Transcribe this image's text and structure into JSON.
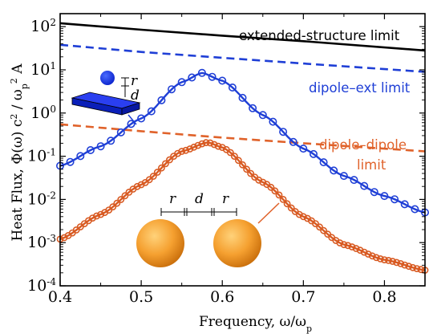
{
  "chart_data": {
    "type": "line",
    "title": "",
    "xlabel": "Frequency, ω/ω",
    "xlabel_sub": "p",
    "ylabel": "Heat Flux, Φ(ω) c / ω A",
    "ylabel_parts": [
      "Heat Flux, Φ(ω) c",
      "2",
      " / ω",
      "p",
      "2",
      " A"
    ],
    "xlim": [
      0.4,
      0.85
    ],
    "ylim": [
      0.0001,
      200
    ],
    "yscale": "log",
    "grid": false,
    "x_ticks": [
      0.4,
      0.5,
      0.6,
      0.7,
      0.8
    ],
    "x_tick_labels": [
      "0.4",
      "0.5",
      "0.6",
      "0.7",
      "0.8"
    ],
    "y_tick_labels": [
      {
        "base": "10",
        "exp": "-4",
        "value": 0.0001
      },
      {
        "base": "10",
        "exp": "-3",
        "value": 0.001
      },
      {
        "base": "10",
        "exp": "-2",
        "value": 0.01
      },
      {
        "base": "10",
        "exp": "-1",
        "value": 0.1
      },
      {
        "base": "10",
        "exp": "0",
        "value": 1
      },
      {
        "base": "10",
        "exp": "1",
        "value": 10
      },
      {
        "base": "10",
        "exp": "2",
        "value": 100
      }
    ],
    "series": [
      {
        "name": "extended-structure limit",
        "style": "solid",
        "color": "#000000",
        "x": [
          0.4,
          0.5,
          0.6,
          0.7,
          0.85
        ],
        "y": [
          120,
          85,
          62,
          46,
          28
        ]
      },
      {
        "name": "dipole–ext limit",
        "style": "dashed",
        "color": "#1f3fd6",
        "x": [
          0.4,
          0.5,
          0.6,
          0.7,
          0.85
        ],
        "y": [
          38,
          26,
          19,
          14,
          9
        ]
      },
      {
        "name": "dipole–dipole limit",
        "style": "dashed",
        "color": "#e0622a",
        "x": [
          0.4,
          0.5,
          0.6,
          0.7,
          0.85
        ],
        "y": [
          0.55,
          0.38,
          0.27,
          0.2,
          0.13
        ]
      },
      {
        "name": "",
        "style": "solid-circles",
        "color": "#1f3fd6",
        "peak_x": 0.575,
        "peak_y": 8.5,
        "width": 0.062,
        "x": [
          0.4,
          0.45,
          0.5,
          0.55,
          0.575,
          0.6,
          0.65,
          0.7,
          0.75,
          0.8,
          0.85
        ],
        "y": [
          0.06,
          0.17,
          0.75,
          5.2,
          8.5,
          5.6,
          0.9,
          0.15,
          0.035,
          0.012,
          0.005
        ]
      },
      {
        "name": "",
        "style": "solid-circles",
        "color": "#d85a22",
        "peak_x": 0.582,
        "peak_y": 0.21,
        "width": 0.062,
        "x": [
          0.4,
          0.45,
          0.5,
          0.55,
          0.582,
          0.6,
          0.65,
          0.7,
          0.75,
          0.8,
          0.85
        ],
        "y": [
          0.0012,
          0.0045,
          0.022,
          0.13,
          0.21,
          0.16,
          0.025,
          0.004,
          0.0009,
          0.0004,
          0.00023
        ]
      }
    ],
    "annotations": [
      {
        "text": "extended-structure limit",
        "color": "#000000"
      },
      {
        "text": "dipole–ext limit",
        "color": "#1f3fd6"
      },
      {
        "text": "dipole–dipole",
        "color": "#e0622a"
      },
      {
        "text": "limit",
        "color": "#e0622a"
      }
    ],
    "inset_labels": {
      "r": "r",
      "d": "d"
    }
  }
}
